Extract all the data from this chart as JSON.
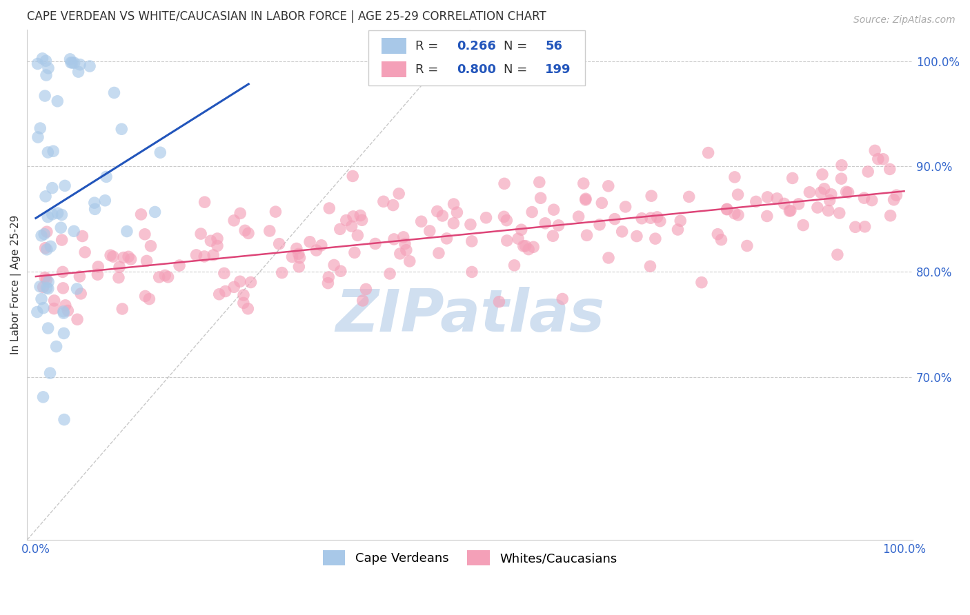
{
  "title": "CAPE VERDEAN VS WHITE/CAUCASIAN IN LABOR FORCE | AGE 25-29 CORRELATION CHART",
  "source_text": "Source: ZipAtlas.com",
  "ylabel": "In Labor Force | Age 25-29",
  "right_ytick_labels": [
    "70.0%",
    "80.0%",
    "90.0%",
    "100.0%"
  ],
  "right_ytick_values": [
    0.7,
    0.8,
    0.9,
    1.0
  ],
  "bottom_legend": [
    "Cape Verdeans",
    "Whites/Caucasians"
  ],
  "blue_R": 0.266,
  "blue_N": 56,
  "pink_R": 0.8,
  "pink_N": 199,
  "blue_color": "#A8C8E8",
  "pink_color": "#F4A0B8",
  "blue_line_color": "#2255BB",
  "pink_line_color": "#DD4477",
  "background_color": "#FFFFFF",
  "grid_color": "#CCCCCC",
  "watermark": "ZIPatlas",
  "watermark_color": "#D0DFF0",
  "title_color": "#333333",
  "source_color": "#AAAAAA",
  "legend_text_color": "#333333",
  "legend_value_color": "#2255BB",
  "axis_label_color": "#3366CC"
}
